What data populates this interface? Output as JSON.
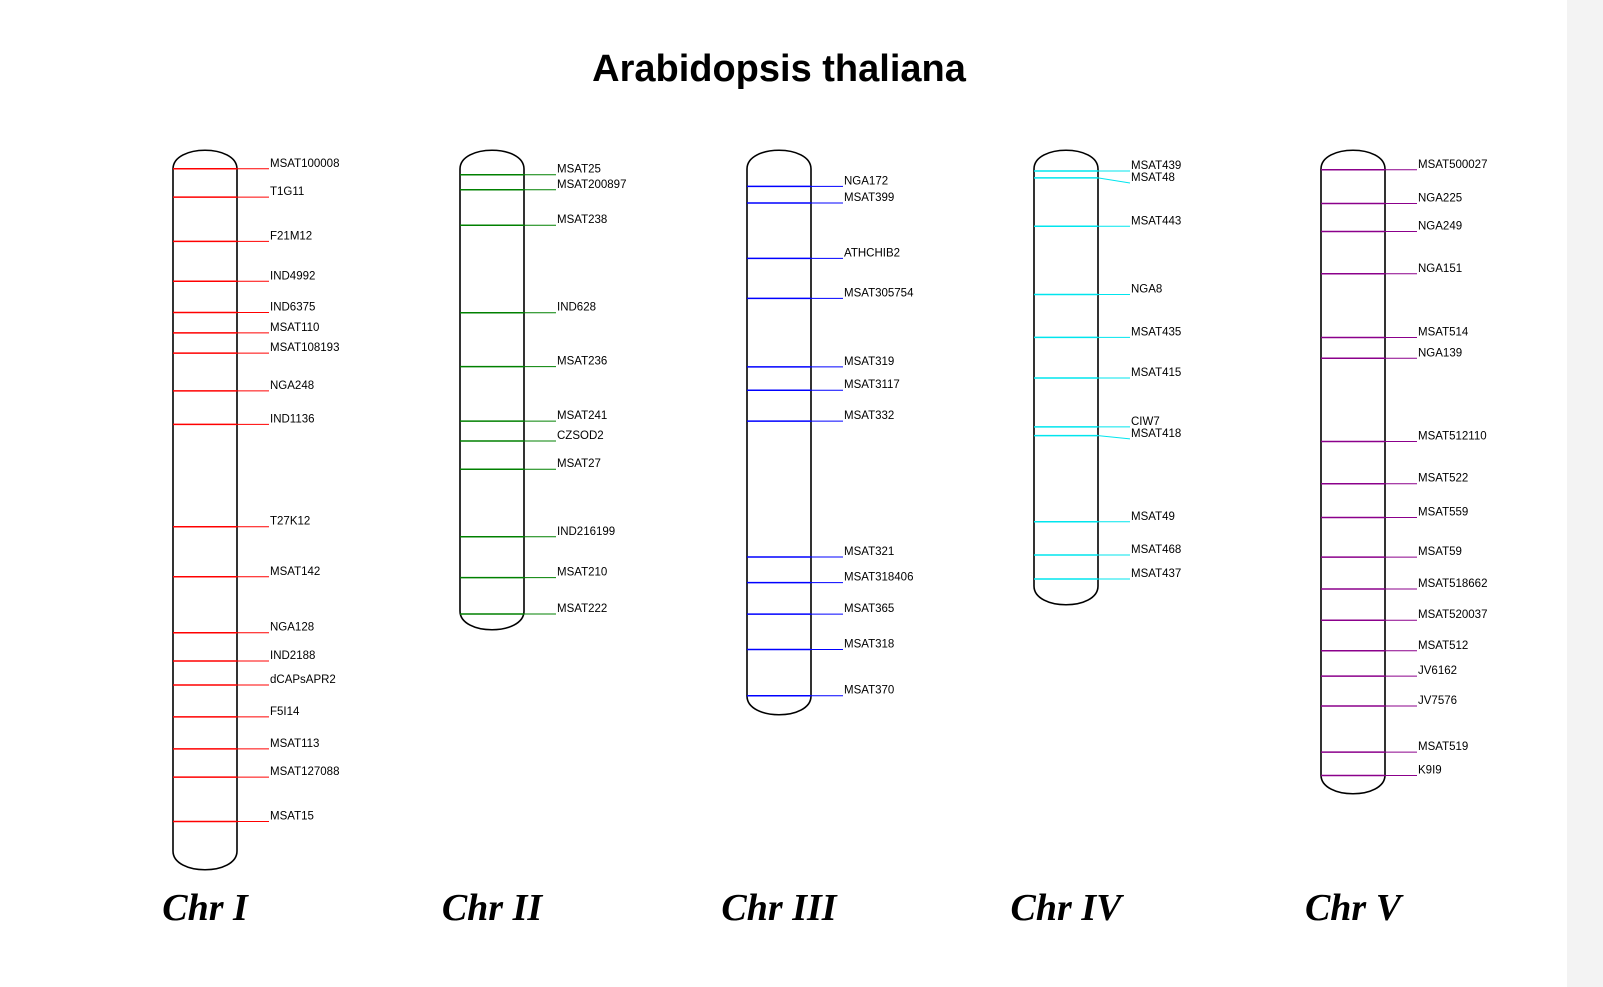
{
  "title": "Arabidopsis thaliana",
  "chromosomes": [
    {
      "label": "Chr I",
      "color": "#ff0000",
      "markers": [
        {
          "name": "MSAT100008",
          "pos": 0.03
        },
        {
          "name": "T1G11",
          "pos": 0.069
        },
        {
          "name": "F21M12",
          "pos": 0.13
        },
        {
          "name": "IND4992",
          "pos": 0.185
        },
        {
          "name": "IND6375",
          "pos": 0.228
        },
        {
          "name": "MSAT110",
          "pos": 0.256
        },
        {
          "name": "MSAT108193",
          "pos": 0.284
        },
        {
          "name": "NGA248",
          "pos": 0.336
        },
        {
          "name": "IND1136",
          "pos": 0.382
        },
        {
          "name": "T27K12",
          "pos": 0.523
        },
        {
          "name": "MSAT142",
          "pos": 0.592
        },
        {
          "name": "NGA128",
          "pos": 0.669
        },
        {
          "name": "IND2188",
          "pos": 0.708
        },
        {
          "name": "dCAPsAPR2",
          "pos": 0.741
        },
        {
          "name": "F5I14",
          "pos": 0.785
        },
        {
          "name": "MSAT113",
          "pos": 0.829
        },
        {
          "name": "MSAT127088",
          "pos": 0.868
        },
        {
          "name": "MSAT15",
          "pos": 0.929
        }
      ]
    },
    {
      "label": "Chr II",
      "color": "#008000",
      "markers": [
        {
          "name": "MSAT25",
          "pos": 0.057
        },
        {
          "name": "MSAT200897",
          "pos": 0.088
        },
        {
          "name": "MSAT238",
          "pos": 0.161
        },
        {
          "name": "IND628",
          "pos": 0.341
        },
        {
          "name": "MSAT236",
          "pos": 0.452
        },
        {
          "name": "MSAT241",
          "pos": 0.564
        },
        {
          "name": "CZSOD2",
          "pos": 0.605
        },
        {
          "name": "MSAT27",
          "pos": 0.663
        },
        {
          "name": "IND216199",
          "pos": 0.802
        },
        {
          "name": "MSAT210",
          "pos": 0.886
        },
        {
          "name": "MSAT222",
          "pos": 0.961
        }
      ]
    },
    {
      "label": "Chr III",
      "color": "#0000ff",
      "markers": [
        {
          "name": "NGA172",
          "pos": 0.069
        },
        {
          "name": "MSAT399",
          "pos": 0.098
        },
        {
          "name": "ATHCHIB2",
          "pos": 0.195
        },
        {
          "name": "MSAT305754",
          "pos": 0.265
        },
        {
          "name": "MSAT319",
          "pos": 0.385
        },
        {
          "name": "MSAT3117",
          "pos": 0.426
        },
        {
          "name": "MSAT332",
          "pos": 0.48
        },
        {
          "name": "MSAT321",
          "pos": 0.718
        },
        {
          "name": "MSAT318406",
          "pos": 0.763
        },
        {
          "name": "MSAT365",
          "pos": 0.818
        },
        {
          "name": "MSAT318",
          "pos": 0.88
        },
        {
          "name": "MSAT370",
          "pos": 0.961
        }
      ]
    },
    {
      "label": "Chr IV",
      "color": "#00e5ee",
      "markers": [
        {
          "name": "MSAT439",
          "pos": 0.052
        },
        {
          "name": "MSAT48",
          "pos": 0.067
        },
        {
          "name": "MSAT443",
          "pos": 0.172
        },
        {
          "name": "NGA8",
          "pos": 0.32
        },
        {
          "name": "MSAT435",
          "pos": 0.413
        },
        {
          "name": "MSAT415",
          "pos": 0.501
        },
        {
          "name": "CIW7",
          "pos": 0.607
        },
        {
          "name": "MSAT418",
          "pos": 0.626
        },
        {
          "name": "MSAT49",
          "pos": 0.813
        },
        {
          "name": "MSAT468",
          "pos": 0.885
        },
        {
          "name": "MSAT437",
          "pos": 0.937
        }
      ]
    },
    {
      "label": "Chr V",
      "color": "#8b008b",
      "markers": [
        {
          "name": "MSAT500027",
          "pos": 0.035
        },
        {
          "name": "NGA225",
          "pos": 0.087
        },
        {
          "name": "NGA249",
          "pos": 0.13
        },
        {
          "name": "NGA151",
          "pos": 0.195
        },
        {
          "name": "MSAT514",
          "pos": 0.293
        },
        {
          "name": "NGA139",
          "pos": 0.325
        },
        {
          "name": "MSAT512110",
          "pos": 0.453
        },
        {
          "name": "MSAT522",
          "pos": 0.518
        },
        {
          "name": "MSAT559",
          "pos": 0.57
        },
        {
          "name": "MSAT59",
          "pos": 0.631
        },
        {
          "name": "MSAT518662",
          "pos": 0.68
        },
        {
          "name": "MSAT520037",
          "pos": 0.728
        },
        {
          "name": "MSAT512",
          "pos": 0.775
        },
        {
          "name": "JV6162",
          "pos": 0.814
        },
        {
          "name": "JV7576",
          "pos": 0.86
        },
        {
          "name": "MSAT519",
          "pos": 0.931
        },
        {
          "name": "K9I9",
          "pos": 0.967
        }
      ]
    }
  ]
}
